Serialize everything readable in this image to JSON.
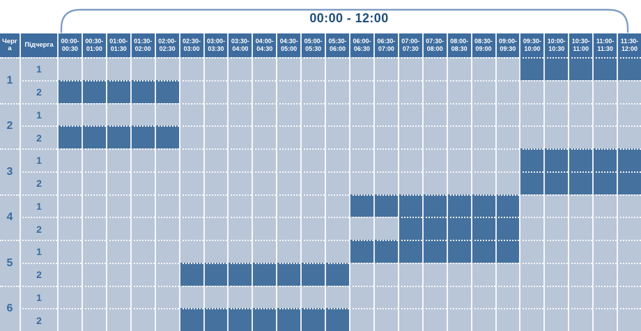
{
  "title": "00:00 - 12:00",
  "table": {
    "corner_headers": [
      "Черга",
      "Підчерга"
    ],
    "time_slots": [
      "00:00-00:30",
      "00:30-01:00",
      "01:00-01:30",
      "01:30-02:00",
      "02:00-02:30",
      "02:30-03:00",
      "03:00-03:30",
      "03:30-04:00",
      "04:00-04:30",
      "04:30-05:00",
      "05:00-05:30",
      "05:30-06:00",
      "06:00-06:30",
      "06:30-07:00",
      "07:00-07:30",
      "07:30-08:00",
      "08:00-08:30",
      "08:30-09:00",
      "09:00-09:30",
      "09:30-10:00",
      "10:00-10:30",
      "10:30-11:00",
      "11:00-11:30",
      "11:30-12:00"
    ],
    "queues": [
      {
        "label": "1",
        "subqueues": [
          {
            "label": "1",
            "filled": [
              {
                "start": "09:30",
                "end": "12:00"
              }
            ]
          },
          {
            "label": "2",
            "filled": [
              {
                "start": "00:00",
                "end": "02:30"
              }
            ]
          }
        ]
      },
      {
        "label": "2",
        "subqueues": [
          {
            "label": "1",
            "filled": []
          },
          {
            "label": "2",
            "filled": [
              {
                "start": "00:00",
                "end": "02:30"
              }
            ]
          }
        ]
      },
      {
        "label": "3",
        "subqueues": [
          {
            "label": "1",
            "filled": [
              {
                "start": "09:30",
                "end": "12:00"
              }
            ]
          },
          {
            "label": "2",
            "filled": [
              {
                "start": "09:30",
                "end": "12:00"
              }
            ]
          }
        ]
      },
      {
        "label": "4",
        "subqueues": [
          {
            "label": "1",
            "filled": [
              {
                "start": "06:00",
                "end": "09:30"
              }
            ]
          },
          {
            "label": "2",
            "filled": [
              {
                "start": "07:00",
                "end": "09:30"
              }
            ]
          }
        ]
      },
      {
        "label": "5",
        "subqueues": [
          {
            "label": "1",
            "filled": [
              {
                "start": "06:00",
                "end": "09:30"
              }
            ]
          },
          {
            "label": "2",
            "filled": [
              {
                "start": "02:30",
                "end": "06:00"
              }
            ]
          }
        ]
      },
      {
        "label": "6",
        "subqueues": [
          {
            "label": "1",
            "filled": []
          },
          {
            "label": "2",
            "filled": [
              {
                "start": "02:30",
                "end": "06:00"
              }
            ]
          }
        ]
      }
    ]
  },
  "colors": {
    "header_bg": "#3E6C9E",
    "filled_cell": "#45719E",
    "empty_cell": "#B9C6D8",
    "label_text": "#3A6B9E",
    "title_text": "#1F4E79",
    "bracket": "#7E9DC6"
  }
}
